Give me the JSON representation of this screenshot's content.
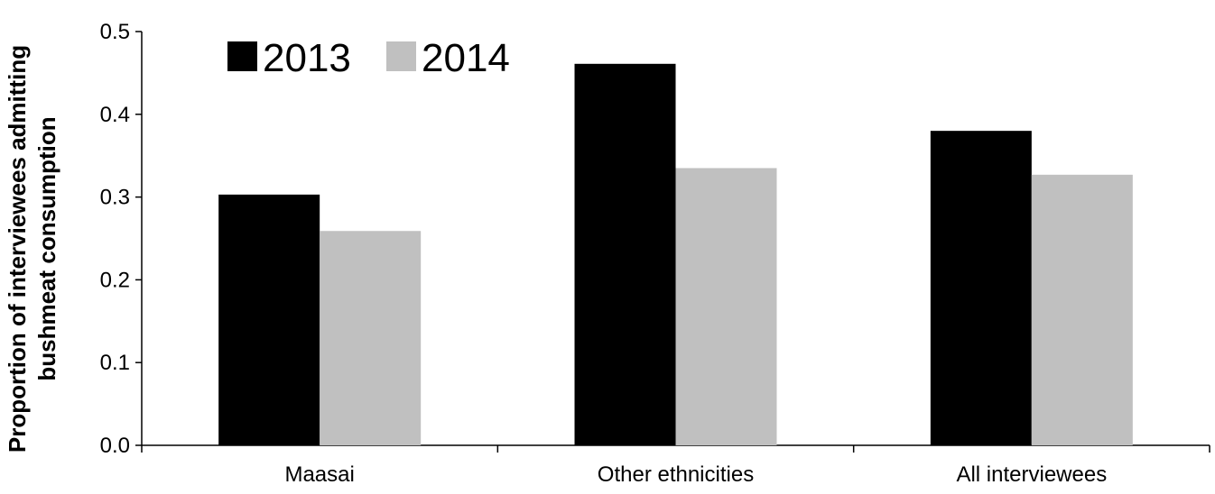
{
  "chart_data": {
    "type": "bar",
    "title": "",
    "xlabel": "",
    "ylabel_lines": [
      "Proportion of interviewees admitting",
      "bushmeat consumption"
    ],
    "categories": [
      "Maasai",
      "Other ethnicities",
      "All interviewees"
    ],
    "series": [
      {
        "name": "2013",
        "color": "#000000",
        "values": [
          0.303,
          0.461,
          0.38
        ]
      },
      {
        "name": "2014",
        "color": "#c0c0c0",
        "values": [
          0.259,
          0.335,
          0.327
        ]
      }
    ],
    "ylim": [
      0,
      0.5
    ],
    "yticks": [
      "0.0",
      "0.1",
      "0.2",
      "0.3",
      "0.4",
      "0.5"
    ],
    "grid": false,
    "legend_position": "top-left"
  }
}
